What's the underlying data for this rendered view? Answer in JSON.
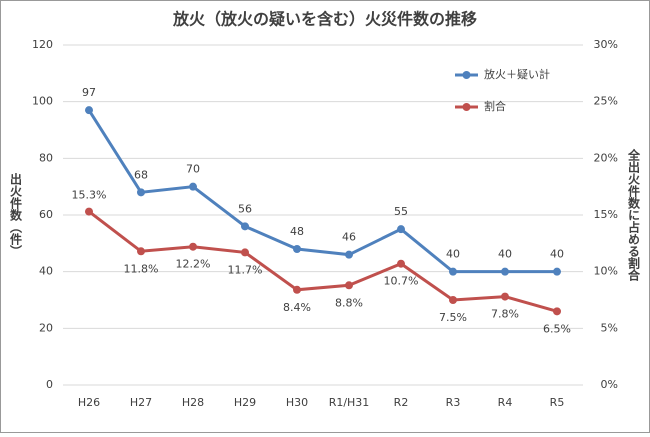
{
  "chart_data": {
    "type": "line",
    "title": "放火（放火の疑いを含む）火災件数の推移",
    "y_label": "出火件数（件）",
    "y2_label": "全出火件数に占める割合",
    "categories": [
      "H26",
      "H27",
      "H28",
      "H29",
      "H30",
      "R1/H31",
      "R2",
      "R3",
      "R4",
      "R5"
    ],
    "series": [
      {
        "name": "放火＋疑い計",
        "color": "#4f81bd",
        "values": [
          97,
          68,
          70,
          56,
          48,
          46,
          55,
          40,
          40,
          40
        ]
      },
      {
        "name": "割合",
        "color": "#c0504d",
        "axis": "y2",
        "values": [
          15.3,
          11.8,
          12.2,
          11.7,
          8.4,
          8.8,
          10.7,
          7.5,
          7.8,
          6.5
        ],
        "value_labels": [
          "15.3%",
          "11.8%",
          "12.2%",
          "11.7%",
          "8.4%",
          "8.8%",
          "10.7%",
          "7.5%",
          "7.8%",
          "6.5%"
        ]
      }
    ],
    "ylim": [
      0,
      120
    ],
    "yticks": [
      0,
      20,
      40,
      60,
      80,
      100,
      120
    ],
    "y2lim": [
      0,
      30
    ],
    "y2ticks": [
      {
        "value": 0,
        "label": "0%"
      },
      {
        "value": 5,
        "label": "5%"
      },
      {
        "value": 10,
        "label": "10%"
      },
      {
        "value": 15,
        "label": "15%"
      },
      {
        "value": 20,
        "label": "20%"
      },
      {
        "value": 25,
        "label": "25%"
      },
      {
        "value": 30,
        "label": "30%"
      }
    ],
    "grid": true
  }
}
